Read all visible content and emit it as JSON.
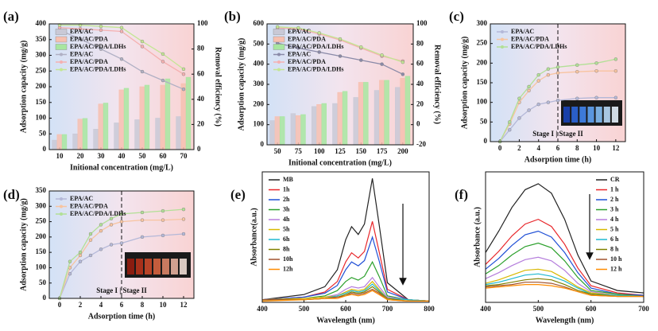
{
  "chart_data": [
    {
      "type": "bar_line",
      "label": "(a)",
      "x_label": "Initional concentration (mg/L)",
      "y_label": "Adsorption capacity (mg/g)",
      "y2_label": "Removal efficiency (%)",
      "categories": [
        10,
        20,
        30,
        40,
        50,
        60,
        70
      ],
      "ylim": [
        0,
        400
      ],
      "yticks": [
        0,
        50,
        100,
        150,
        200,
        250,
        300,
        350,
        400
      ],
      "y2lim": [
        0,
        100
      ],
      "y2ticks": [
        0,
        20,
        40,
        60,
        80,
        100
      ],
      "legend": "upper left",
      "markers": true,
      "series": [
        {
          "name": "EPA/AC",
          "type": "bar",
          "color": "#c9c9d6",
          "values": [
            30,
            50,
            65,
            85,
            95,
            100,
            105
          ]
        },
        {
          "name": "EPA/AC/PDA",
          "type": "bar",
          "color": "#f7c0b0",
          "values": [
            48,
            97,
            145,
            190,
            200,
            205,
            210
          ]
        },
        {
          "name": "EPA/AC/PDA/LDHs",
          "type": "bar",
          "color": "#a8e6a0",
          "values": [
            48,
            99,
            148,
            195,
            205,
            225,
            230
          ]
        },
        {
          "name": "EPA/AC",
          "type": "line",
          "axis": "y2",
          "color": "#b0b0c4",
          "values": [
            95,
            88,
            80,
            72,
            62,
            55,
            48
          ]
        },
        {
          "name": "EPA/AC/PDA",
          "type": "line",
          "axis": "y2",
          "color": "#f5b0b0",
          "values": [
            97,
            96,
            95,
            94,
            82,
            70,
            60
          ]
        },
        {
          "name": "EPA/AC/PDA/LDHs",
          "type": "line",
          "axis": "y2",
          "color": "#c4e694",
          "values": [
            99,
            99,
            98,
            97,
            86,
            76,
            64
          ]
        }
      ]
    },
    {
      "type": "bar_line",
      "label": "(b)",
      "x_label": "Initional concentration (mg/L)",
      "y_label": "Adsorption capacity (mg/g)",
      "y2_label": "Removal efficiency (%)",
      "categories": [
        50,
        75,
        100,
        125,
        150,
        175,
        200
      ],
      "ylim": [
        0,
        600
      ],
      "yticks": [
        0,
        100,
        200,
        300,
        400,
        500,
        600
      ],
      "y2lim": [
        -20,
        100
      ],
      "y2ticks": [
        -20,
        0,
        20,
        40,
        60,
        80,
        100
      ],
      "legend": "upper left",
      "markers": true,
      "series": [
        {
          "name": "EPA/AC",
          "type": "bar",
          "color": "#c9c9d6",
          "values": [
            120,
            155,
            190,
            205,
            235,
            270,
            285
          ]
        },
        {
          "name": "EPA/AC/PDA",
          "type": "bar",
          "color": "#f7c0b0",
          "values": [
            140,
            145,
            200,
            260,
            310,
            320,
            330
          ]
        },
        {
          "name": "EPA/AC/PDA/LDHs",
          "type": "bar",
          "color": "#a8e6a0",
          "values": [
            140,
            150,
            205,
            265,
            310,
            320,
            340
          ]
        },
        {
          "name": "EPA/AC",
          "type": "line",
          "axis": "y2",
          "color": "#8a8aa8",
          "values": [
            81,
            76,
            72,
            68,
            64,
            60,
            50
          ]
        },
        {
          "name": "EPA/AC/PDA",
          "type": "line",
          "axis": "y2",
          "color": "#f5b0b0",
          "values": [
            96,
            95,
            90,
            84,
            76,
            68,
            63
          ]
        },
        {
          "name": "EPA/AC/PDA/LDHs",
          "type": "line",
          "axis": "y2",
          "color": "#c4e694",
          "values": [
            97,
            96,
            91,
            85,
            77,
            69,
            62
          ]
        }
      ]
    },
    {
      "type": "line",
      "label": "(c)",
      "x_label": "Adsorption time (h)",
      "y_label": "Adsorption capacity (mg/g)",
      "x": [
        0,
        1,
        2,
        3,
        4,
        5,
        6,
        8,
        10,
        12
      ],
      "xlim": [
        -1,
        13
      ],
      "xticks": [
        0,
        2,
        4,
        6,
        8,
        10,
        12
      ],
      "ylim": [
        0,
        300
      ],
      "yticks": [
        0,
        50,
        100,
        150,
        200,
        250,
        300
      ],
      "legend": "upper left",
      "markers": true,
      "stage_boundary": 6,
      "annotation": "Stage I | Stage II",
      "series": [
        {
          "name": "EPA/AC",
          "color": "#b4b8d8",
          "values": [
            0,
            30,
            60,
            80,
            95,
            100,
            105,
            110,
            112,
            112
          ]
        },
        {
          "name": "EPA/AC/PDA",
          "color": "#f8c4a0",
          "values": [
            0,
            45,
            100,
            130,
            155,
            170,
            175,
            178,
            180,
            180
          ]
        },
        {
          "name": "EPA/AC/PDA/LDHs",
          "color": "#b2e096",
          "values": [
            0,
            50,
            110,
            140,
            170,
            185,
            190,
            195,
            200,
            210
          ]
        }
      ]
    },
    {
      "type": "line",
      "label": "(d)",
      "x_label": "Adsorption time (h)",
      "y_label": "Adsorption capacity (mg/g)",
      "x": [
        0,
        1,
        2,
        3,
        4,
        5,
        6,
        8,
        10,
        12
      ],
      "xlim": [
        -1,
        13
      ],
      "xticks": [
        0,
        2,
        4,
        6,
        8,
        10,
        12
      ],
      "ylim": [
        0,
        350
      ],
      "yticks": [
        0,
        50,
        100,
        150,
        200,
        250,
        300,
        350
      ],
      "legend": "upper left",
      "markers": true,
      "stage_boundary": 6,
      "annotation": "Stage I | Stage II",
      "series": [
        {
          "name": "EPA/AC",
          "color": "#b4b8d8",
          "values": [
            0,
            80,
            120,
            140,
            160,
            175,
            180,
            200,
            205,
            210
          ]
        },
        {
          "name": "EPA/AC/PDA",
          "color": "#f8c4a0",
          "values": [
            0,
            100,
            140,
            190,
            220,
            240,
            250,
            255,
            255,
            258
          ]
        },
        {
          "name": "EPA/AC/PDA/LDHs",
          "color": "#b2e096",
          "values": [
            0,
            120,
            150,
            210,
            240,
            260,
            275,
            280,
            285,
            290
          ]
        }
      ]
    },
    {
      "type": "line",
      "label": "(e)",
      "x_label": "Wavelength (nm)",
      "y_label": "Absorbance(a.u.)",
      "x": [
        400,
        500,
        550,
        580,
        600,
        614,
        630,
        645,
        664,
        680,
        700,
        750,
        800
      ],
      "xlim": [
        400,
        800
      ],
      "xticks": [
        400,
        500,
        600,
        700,
        800
      ],
      "ylim": [
        0,
        1
      ],
      "legend": "upper left",
      "markers": false,
      "series": [
        {
          "name": "MB",
          "color": "#222222",
          "values": [
            0.02,
            0.06,
            0.12,
            0.25,
            0.48,
            0.58,
            0.52,
            0.6,
            0.95,
            0.6,
            0.15,
            0.02,
            0.01
          ]
        },
        {
          "name": "1h",
          "color": "#e8262a",
          "values": [
            0.02,
            0.04,
            0.08,
            0.16,
            0.31,
            0.38,
            0.34,
            0.39,
            0.62,
            0.39,
            0.1,
            0.02,
            0.01
          ]
        },
        {
          "name": "2h",
          "color": "#1f4fd6",
          "values": [
            0.02,
            0.04,
            0.07,
            0.13,
            0.25,
            0.31,
            0.28,
            0.32,
            0.5,
            0.32,
            0.08,
            0.02,
            0.01
          ]
        },
        {
          "name": "3h",
          "color": "#2ca02c",
          "values": [
            0.02,
            0.03,
            0.05,
            0.09,
            0.16,
            0.19,
            0.17,
            0.2,
            0.31,
            0.2,
            0.05,
            0.02,
            0.01
          ]
        },
        {
          "name": "4h",
          "color": "#b57edc",
          "values": [
            0.02,
            0.03,
            0.04,
            0.06,
            0.1,
            0.12,
            0.11,
            0.12,
            0.19,
            0.12,
            0.04,
            0.02,
            0.01
          ]
        },
        {
          "name": "5h",
          "color": "#d8b800",
          "values": [
            0.02,
            0.03,
            0.04,
            0.05,
            0.08,
            0.1,
            0.09,
            0.1,
            0.16,
            0.1,
            0.03,
            0.02,
            0.01
          ]
        },
        {
          "name": "6h",
          "color": "#20b8d0",
          "values": [
            0.02,
            0.02,
            0.03,
            0.05,
            0.07,
            0.09,
            0.08,
            0.09,
            0.14,
            0.09,
            0.03,
            0.02,
            0.01
          ]
        },
        {
          "name": "8h",
          "color": "#808000",
          "values": [
            0.02,
            0.02,
            0.03,
            0.04,
            0.06,
            0.08,
            0.07,
            0.08,
            0.12,
            0.08,
            0.03,
            0.01,
            0.01
          ]
        },
        {
          "name": "10h",
          "color": "#a0522d",
          "values": [
            0.02,
            0.02,
            0.03,
            0.04,
            0.05,
            0.07,
            0.06,
            0.07,
            0.1,
            0.07,
            0.02,
            0.01,
            0.01
          ]
        },
        {
          "name": "12h",
          "color": "#ff8c00",
          "values": [
            0.01,
            0.02,
            0.03,
            0.03,
            0.05,
            0.06,
            0.05,
            0.06,
            0.09,
            0.06,
            0.02,
            0.01,
            0.01
          ]
        }
      ]
    },
    {
      "type": "line",
      "label": "(f)",
      "x_label": "Wavelength (nm)",
      "y_label": "Absorbance (a.u.)",
      "x": [
        400,
        425,
        450,
        475,
        500,
        525,
        550,
        575,
        600,
        650,
        700
      ],
      "xlim": [
        400,
        700
      ],
      "xticks": [
        400,
        500,
        600,
        700
      ],
      "ylim": [
        0,
        1.1
      ],
      "legend": "upper right",
      "markers": false,
      "series": [
        {
          "name": "CR",
          "color": "#222222",
          "values": [
            0.42,
            0.6,
            0.8,
            0.95,
            1.0,
            0.92,
            0.7,
            0.4,
            0.18,
            0.1,
            0.08
          ]
        },
        {
          "name": "1 h",
          "color": "#e8262a",
          "values": [
            0.32,
            0.43,
            0.56,
            0.66,
            0.7,
            0.64,
            0.49,
            0.29,
            0.14,
            0.08,
            0.06
          ]
        },
        {
          "name": "2 h",
          "color": "#1f4fd6",
          "values": [
            0.28,
            0.37,
            0.48,
            0.57,
            0.6,
            0.55,
            0.42,
            0.25,
            0.12,
            0.07,
            0.06
          ]
        },
        {
          "name": "3 h",
          "color": "#2ca02c",
          "values": [
            0.24,
            0.31,
            0.4,
            0.47,
            0.5,
            0.46,
            0.35,
            0.21,
            0.1,
            0.07,
            0.05
          ]
        },
        {
          "name": "4 h",
          "color": "#b57edc",
          "values": [
            0.2,
            0.25,
            0.31,
            0.36,
            0.38,
            0.35,
            0.27,
            0.16,
            0.09,
            0.06,
            0.05
          ]
        },
        {
          "name": "5 h",
          "color": "#d8b800",
          "values": [
            0.16,
            0.19,
            0.23,
            0.27,
            0.28,
            0.26,
            0.2,
            0.13,
            0.08,
            0.06,
            0.05
          ]
        },
        {
          "name": "6 h",
          "color": "#20b8d0",
          "values": [
            0.15,
            0.17,
            0.2,
            0.23,
            0.24,
            0.22,
            0.18,
            0.12,
            0.07,
            0.06,
            0.05
          ]
        },
        {
          "name": "8 h",
          "color": "#808000",
          "values": [
            0.14,
            0.15,
            0.17,
            0.19,
            0.2,
            0.19,
            0.15,
            0.1,
            0.07,
            0.05,
            0.05
          ]
        },
        {
          "name": "10 h",
          "color": "#a0522d",
          "values": [
            0.13,
            0.14,
            0.15,
            0.17,
            0.17,
            0.16,
            0.13,
            0.09,
            0.06,
            0.05,
            0.05
          ]
        },
        {
          "name": "12 h",
          "color": "#ff8c00",
          "values": [
            0.12,
            0.13,
            0.14,
            0.15,
            0.15,
            0.14,
            0.12,
            0.09,
            0.06,
            0.05,
            0.05
          ]
        }
      ]
    }
  ]
}
